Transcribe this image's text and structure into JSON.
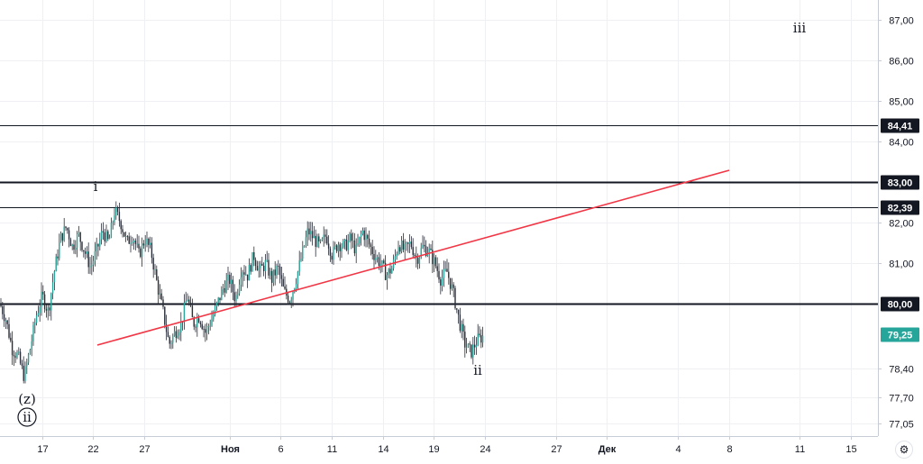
{
  "chart_data": {
    "type": "candlestick",
    "y_axis": {
      "range": [
        76.7,
        87.4
      ],
      "tick_labels": [
        "87,00",
        "86,00",
        "85,00",
        "84,00",
        "82,00",
        "81,00",
        "78,40",
        "77,70",
        "77,05"
      ],
      "tick_values": [
        87.0,
        86.0,
        85.0,
        84.0,
        82.0,
        81.0,
        78.4,
        77.7,
        77.05
      ]
    },
    "x_axis": {
      "tick_labels": [
        "17",
        "22",
        "27",
        "Ноя",
        "6",
        "11",
        "14",
        "19",
        "24",
        "27",
        "Дек",
        "4",
        "8",
        "11",
        "15"
      ],
      "bold_labels": [
        "Ноя",
        "Дек"
      ]
    },
    "horizontal_levels": [
      {
        "label": "84,41",
        "value": 84.41
      },
      {
        "label": "83,00",
        "value": 83.0
      },
      {
        "label": "82,39",
        "value": 82.39
      },
      {
        "label": "80,00",
        "value": 80.0
      }
    ],
    "last_price": {
      "label": "79,25",
      "value": 79.25,
      "color": "#26a69a"
    },
    "trendline": {
      "color": "#f23645",
      "start": {
        "x": "Oct 22",
        "y": 78.9
      },
      "end": {
        "x": "Dec 8",
        "y": 83.15
      }
    },
    "wave_labels": [
      "i",
      "ii",
      "iii",
      "(z)",
      "ii"
    ],
    "price_path": [
      [
        0,
        80.0
      ],
      [
        2,
        79.6
      ],
      [
        4,
        78.9
      ],
      [
        6,
        78.7
      ],
      [
        8,
        78.2
      ],
      [
        10,
        78.9
      ],
      [
        12,
        79.7
      ],
      [
        14,
        80.2
      ],
      [
        16,
        79.8
      ],
      [
        18,
        80.8
      ],
      [
        20,
        81.6
      ],
      [
        22,
        81.9
      ],
      [
        24,
        81.4
      ],
      [
        26,
        81.7
      ],
      [
        28,
        81.3
      ],
      [
        30,
        80.9
      ],
      [
        32,
        81.3
      ],
      [
        34,
        81.8
      ],
      [
        36,
        81.5
      ],
      [
        38,
        82.3
      ],
      [
        40,
        82.0
      ],
      [
        42,
        81.5
      ],
      [
        44,
        81.7
      ],
      [
        46,
        81.2
      ],
      [
        48,
        81.6
      ],
      [
        50,
        81.3
      ],
      [
        52,
        80.5
      ],
      [
        54,
        79.8
      ],
      [
        56,
        79.0
      ],
      [
        58,
        79.3
      ],
      [
        60,
        79.5
      ],
      [
        62,
        80.2
      ],
      [
        64,
        79.5
      ],
      [
        66,
        79.7
      ],
      [
        68,
        79.3
      ],
      [
        70,
        79.6
      ],
      [
        72,
        80.0
      ],
      [
        74,
        80.4
      ],
      [
        76,
        80.6
      ],
      [
        78,
        80.1
      ],
      [
        80,
        80.9
      ],
      [
        82,
        80.7
      ],
      [
        84,
        81.2
      ],
      [
        86,
        80.8
      ],
      [
        88,
        81.0
      ],
      [
        90,
        80.6
      ],
      [
        92,
        80.9
      ],
      [
        94,
        80.3
      ],
      [
        96,
        80.1
      ],
      [
        98,
        80.6
      ],
      [
        100,
        81.2
      ],
      [
        102,
        81.8
      ],
      [
        104,
        81.6
      ],
      [
        106,
        81.4
      ],
      [
        108,
        81.7
      ],
      [
        110,
        81.2
      ],
      [
        112,
        81.5
      ],
      [
        114,
        81.4
      ],
      [
        116,
        81.6
      ],
      [
        118,
        81.3
      ],
      [
        120,
        81.8
      ],
      [
        122,
        81.5
      ],
      [
        124,
        81.2
      ],
      [
        126,
        81.0
      ],
      [
        128,
        80.7
      ],
      [
        130,
        80.9
      ],
      [
        132,
        81.5
      ],
      [
        134,
        81.3
      ],
      [
        136,
        81.5
      ],
      [
        138,
        81.1
      ],
      [
        140,
        81.4
      ],
      [
        142,
        81.3
      ],
      [
        144,
        81.0
      ],
      [
        146,
        80.6
      ],
      [
        148,
        80.8
      ],
      [
        150,
        80.3
      ],
      [
        152,
        79.6
      ],
      [
        154,
        79.0
      ],
      [
        156,
        78.8
      ],
      [
        158,
        79.1
      ],
      [
        160,
        79.2
      ]
    ]
  },
  "ui": {
    "settings_icon": "gear-icon"
  }
}
